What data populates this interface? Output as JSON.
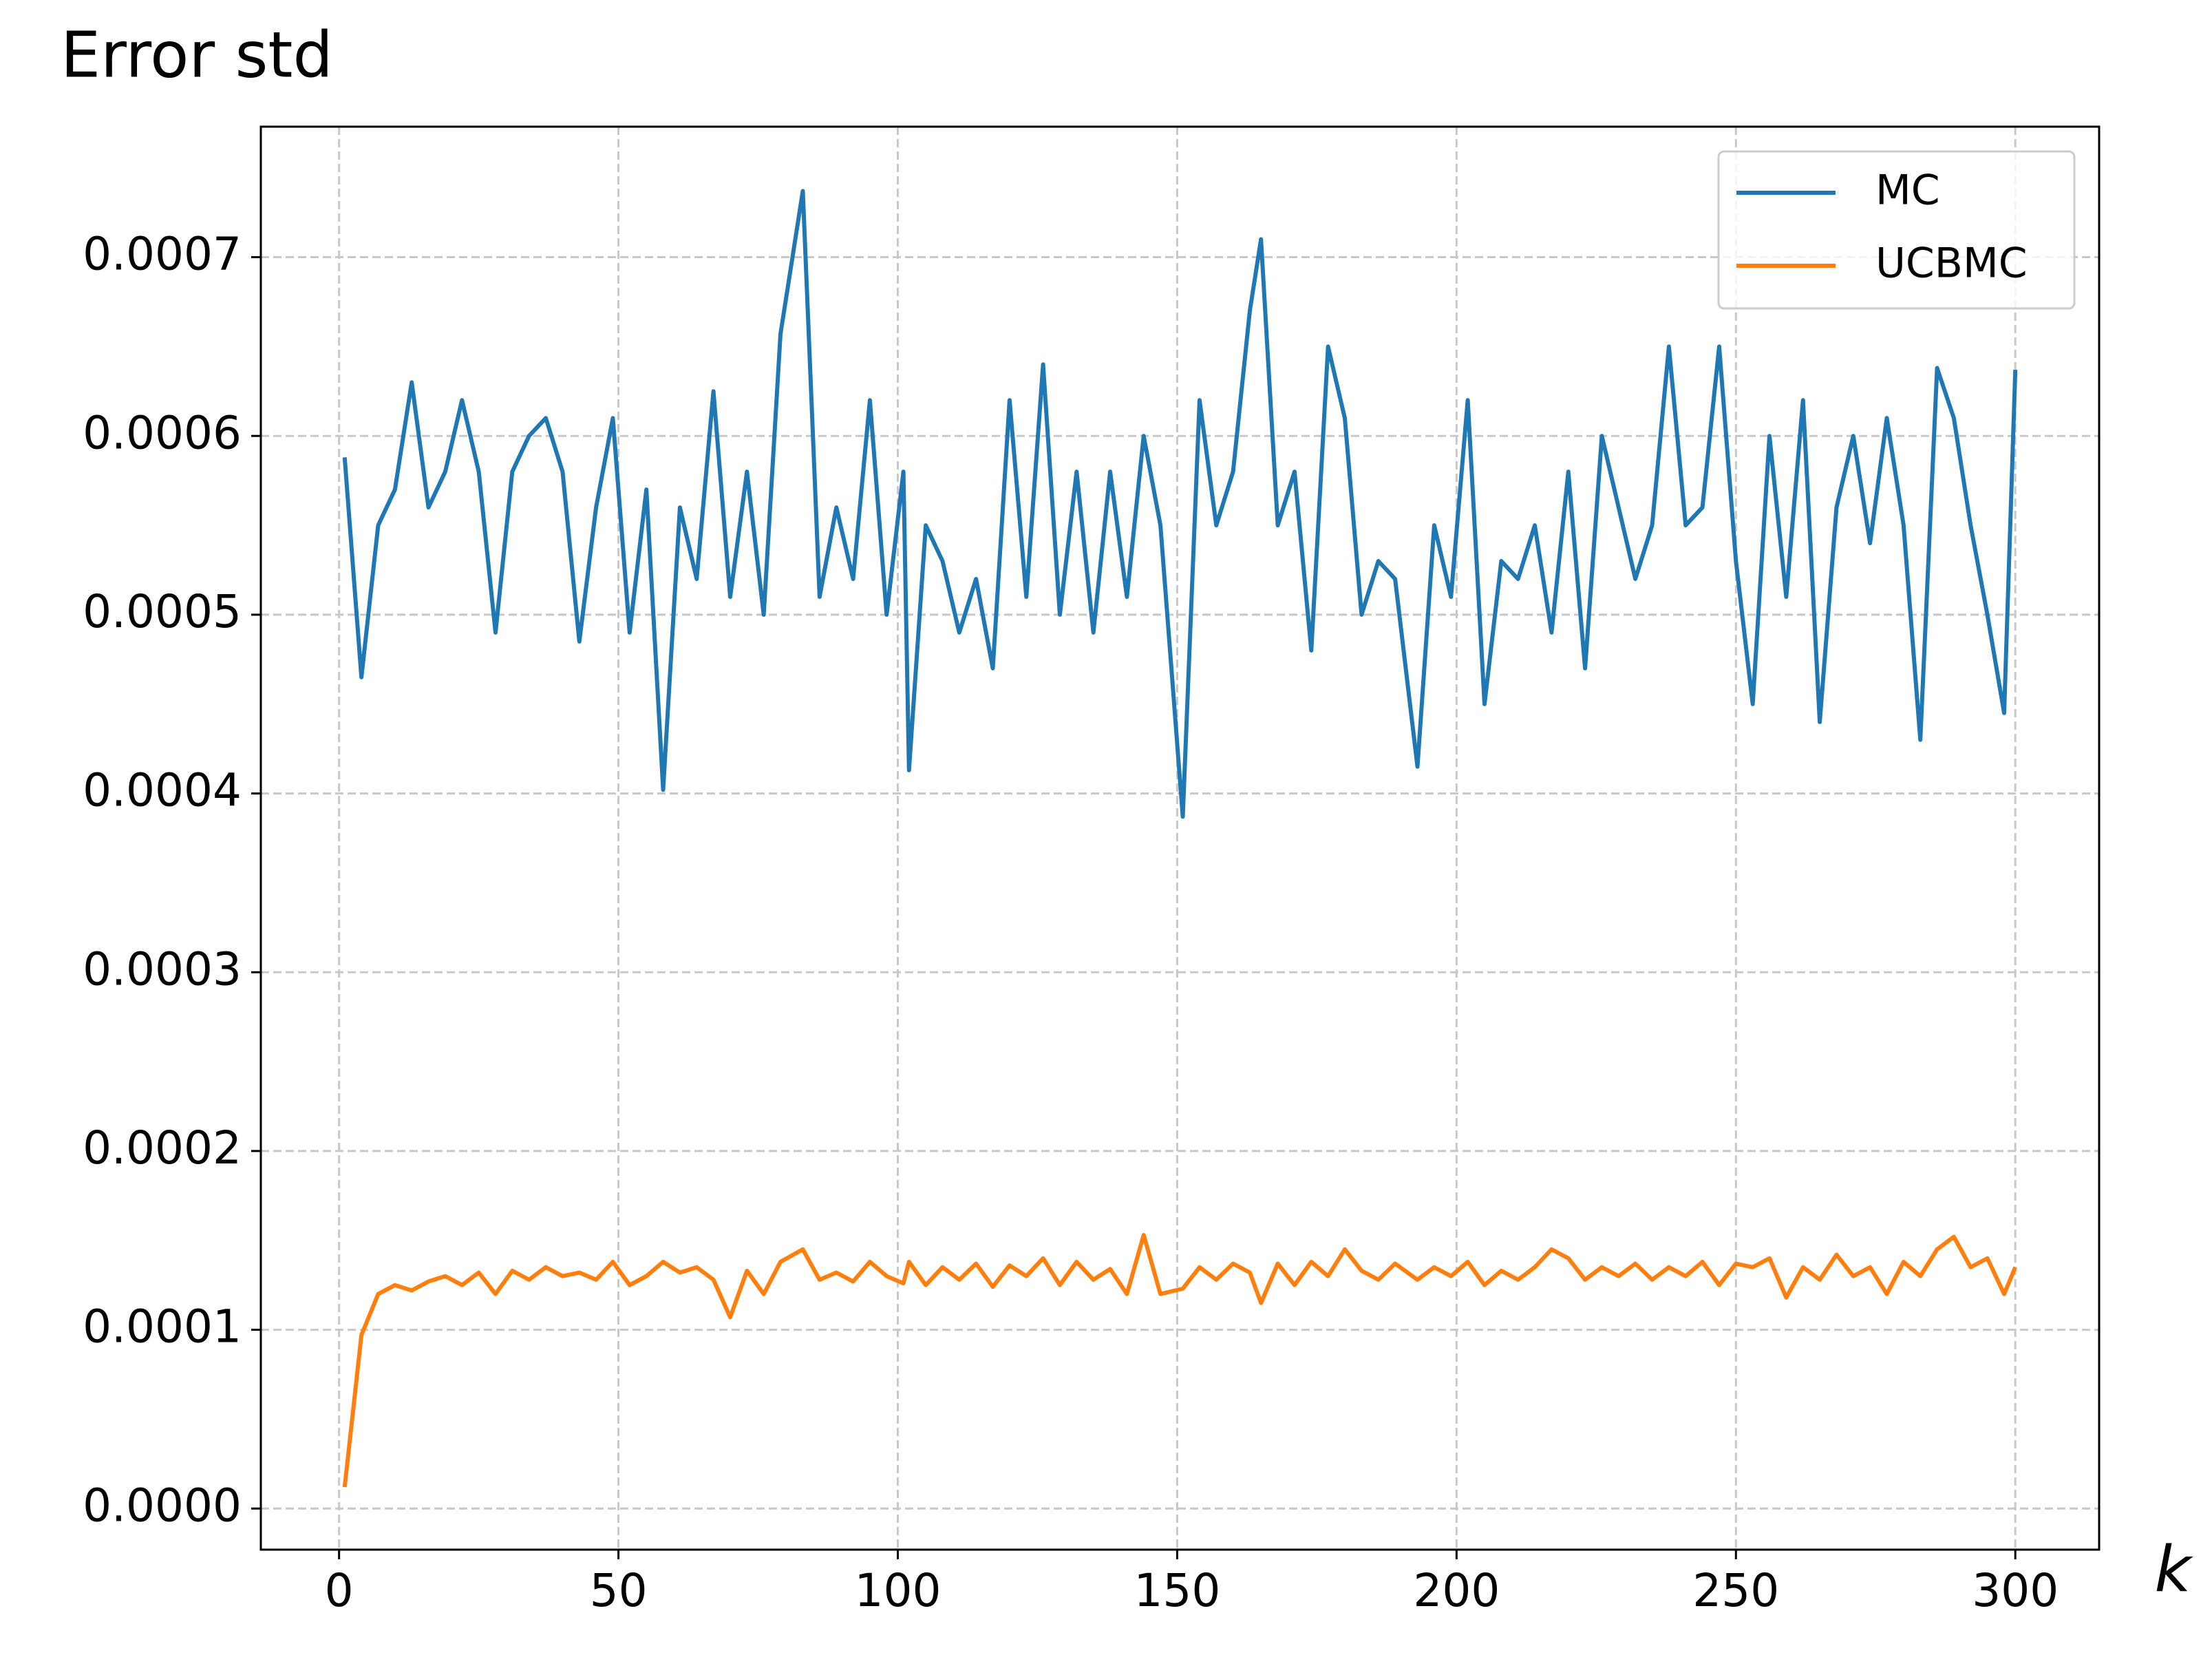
{
  "chart_data": {
    "type": "line",
    "title": "Error std",
    "xlabel": "k",
    "x": [
      1,
      4,
      7,
      10,
      13,
      16,
      19,
      22,
      25,
      28,
      31,
      34,
      37,
      40,
      43,
      46,
      49,
      52,
      55,
      58,
      61,
      64,
      67,
      70,
      73,
      76,
      79,
      83,
      86,
      89,
      92,
      95,
      98,
      101,
      102,
      105,
      108,
      111,
      114,
      117,
      120,
      123,
      126,
      129,
      132,
      135,
      138,
      141,
      144,
      147,
      151,
      154,
      157,
      160,
      163,
      165,
      168,
      171,
      174,
      177,
      180,
      183,
      186,
      189,
      193,
      196,
      199,
      202,
      205,
      208,
      211,
      214,
      217,
      220,
      223,
      226,
      229,
      232,
      235,
      238,
      241,
      244,
      247,
      250,
      253,
      256,
      259,
      262,
      265,
      268,
      271,
      274,
      277,
      280,
      283,
      286,
      289,
      292,
      295,
      298,
      300
    ],
    "series": [
      {
        "name": "MC",
        "color": "#1f77b4",
        "values": [
          0.000588,
          0.000465,
          0.00055,
          0.00057,
          0.00063,
          0.00056,
          0.00058,
          0.00062,
          0.00058,
          0.00049,
          0.00058,
          0.0006,
          0.00061,
          0.00058,
          0.000485,
          0.00056,
          0.00061,
          0.00049,
          0.00057,
          0.000402,
          0.00056,
          0.00052,
          0.000625,
          0.00051,
          0.00058,
          0.0005,
          0.000657,
          0.000737,
          0.00051,
          0.00056,
          0.00052,
          0.00062,
          0.0005,
          0.00058,
          0.000413,
          0.00055,
          0.00053,
          0.00049,
          0.00052,
          0.00047,
          0.00062,
          0.00051,
          0.00064,
          0.0005,
          0.00058,
          0.00049,
          0.00058,
          0.00051,
          0.0006,
          0.00055,
          0.000387,
          0.00062,
          0.00055,
          0.00058,
          0.00067,
          0.00071,
          0.00055,
          0.00058,
          0.00048,
          0.00065,
          0.00061,
          0.0005,
          0.00053,
          0.00052,
          0.000415,
          0.00055,
          0.00051,
          0.00062,
          0.00045,
          0.00053,
          0.00052,
          0.00055,
          0.00049,
          0.00058,
          0.00047,
          0.0006,
          0.00056,
          0.00052,
          0.00055,
          0.00065,
          0.00055,
          0.00056,
          0.00065,
          0.00053,
          0.00045,
          0.0006,
          0.00051,
          0.00062,
          0.00044,
          0.00056,
          0.0006,
          0.00054,
          0.00061,
          0.00055,
          0.00043,
          0.000638,
          0.00061,
          0.00055,
          0.0005,
          0.000445,
          0.000637
        ]
      },
      {
        "name": "UCBMC",
        "color": "#ff7f0e",
        "values": [
          1.2e-05,
          9.7e-05,
          0.00012,
          0.000125,
          0.000122,
          0.000127,
          0.00013,
          0.000125,
          0.000132,
          0.00012,
          0.000133,
          0.000128,
          0.000135,
          0.00013,
          0.000132,
          0.000128,
          0.000138,
          0.000125,
          0.00013,
          0.000138,
          0.000132,
          0.000135,
          0.000128,
          0.000107,
          0.000133,
          0.00012,
          0.000138,
          0.000145,
          0.000128,
          0.000132,
          0.000127,
          0.000138,
          0.00013,
          0.000126,
          0.000138,
          0.000125,
          0.000135,
          0.000128,
          0.000137,
          0.000124,
          0.000136,
          0.00013,
          0.00014,
          0.000125,
          0.000138,
          0.000128,
          0.000134,
          0.00012,
          0.000153,
          0.00012,
          0.000123,
          0.000135,
          0.000128,
          0.000137,
          0.000132,
          0.000115,
          0.000137,
          0.000125,
          0.000138,
          0.00013,
          0.000145,
          0.000133,
          0.000128,
          0.000137,
          0.000128,
          0.000135,
          0.00013,
          0.000138,
          0.000125,
          0.000133,
          0.000128,
          0.000135,
          0.000145,
          0.00014,
          0.000128,
          0.000135,
          0.00013,
          0.000137,
          0.000128,
          0.000135,
          0.00013,
          0.000138,
          0.000125,
          0.000137,
          0.000135,
          0.00014,
          0.000118,
          0.000135,
          0.000128,
          0.000142,
          0.00013,
          0.000135,
          0.00012,
          0.000138,
          0.00013,
          0.000145,
          0.000152,
          0.000135,
          0.00014,
          0.00012,
          0.000135
        ]
      }
    ],
    "xlim": [
      -14,
      315
    ],
    "xticks": [
      0,
      50,
      100,
      150,
      200,
      250,
      300
    ],
    "ylim": [
      -2.3e-05,
      0.000773
    ],
    "yticks": [
      {
        "value": 0,
        "label": "0.0000"
      },
      {
        "value": 0.0001,
        "label": "0.0001"
      },
      {
        "value": 0.0002,
        "label": "0.0002"
      },
      {
        "value": 0.0003,
        "label": "0.0003"
      },
      {
        "value": 0.0004,
        "label": "0.0004"
      },
      {
        "value": 0.0005,
        "label": "0.0005"
      },
      {
        "value": 0.0006,
        "label": "0.0006"
      },
      {
        "value": 0.0007,
        "label": "0.0007"
      }
    ],
    "grid": true,
    "legend": "upper right"
  }
}
